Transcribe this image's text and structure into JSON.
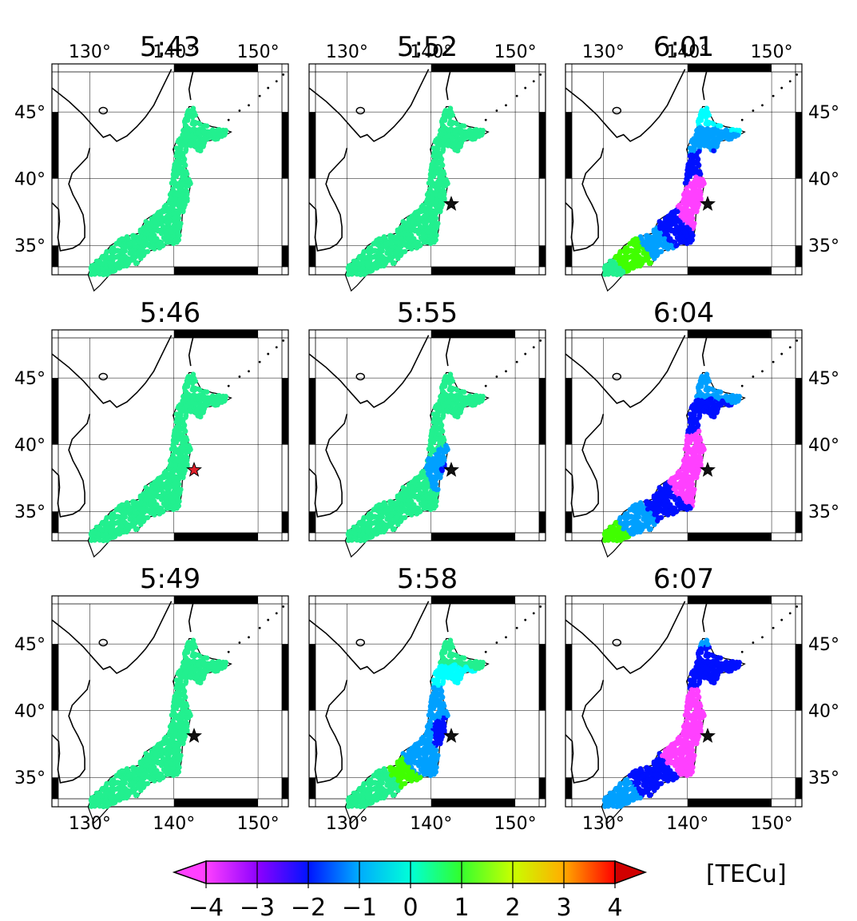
{
  "panels": [
    {
      "title": "5:43",
      "star": "none"
    },
    {
      "title": "5:52",
      "star": "black"
    },
    {
      "title": "6:01",
      "star": "black"
    },
    {
      "title": "5:46",
      "star": "red"
    },
    {
      "title": "5:55",
      "star": "black"
    },
    {
      "title": "6:04",
      "star": "black"
    },
    {
      "title": "5:49",
      "star": "black"
    },
    {
      "title": "5:58",
      "star": "black"
    },
    {
      "title": "6:07",
      "star": "black"
    }
  ],
  "axes": {
    "lon_labels": [
      "130°",
      "140°",
      "150°"
    ],
    "lat_labels": [
      "45°",
      "40°",
      "35°"
    ]
  },
  "colorbar": {
    "ticks": [
      "−4",
      "−3",
      "−2",
      "−1",
      "0",
      "1",
      "2",
      "3",
      "4"
    ],
    "unit": "[TECu]",
    "colors": [
      "#ff40ff",
      "#a000ff",
      "#0010ff",
      "#00a0ff",
      "#00ffff",
      "#00ff80",
      "#40ff00",
      "#c0ff00",
      "#ffff00",
      "#ff9000",
      "#ff0000",
      "#c00000"
    ]
  },
  "map": {
    "base_tec_color": "#22f08f",
    "epicenter_lon": 142.4,
    "epicenter_lat": 38.1
  }
}
